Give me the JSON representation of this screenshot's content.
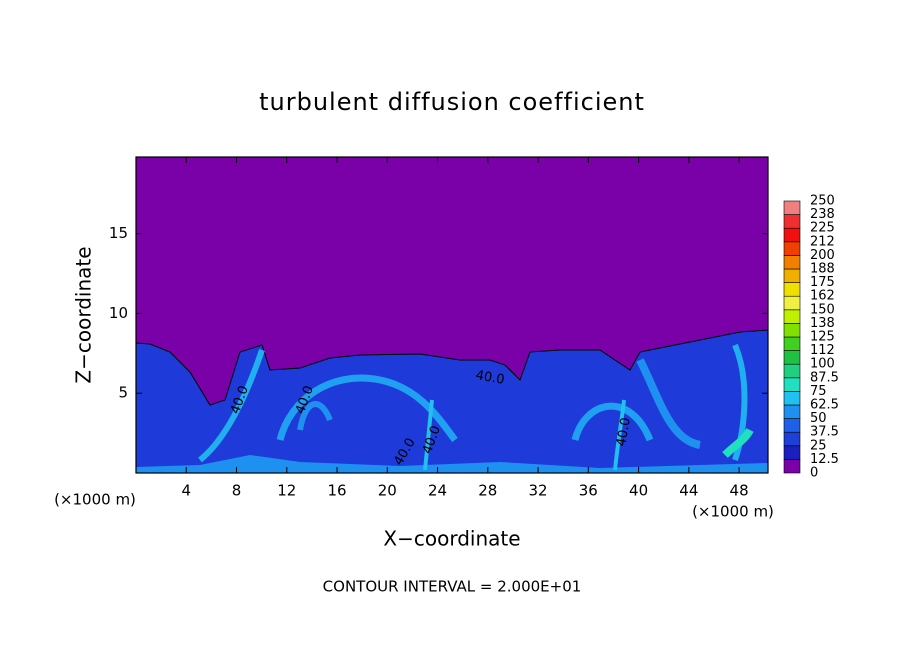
{
  "chart_data": {
    "type": "contour",
    "title": "turbulent diffusion coefficient",
    "x_label": "X−coordinate",
    "y_label": "Z−coordinate",
    "x_unit_label": "(×1000 m)",
    "x_unit_label_right": "(×1000 m)",
    "footer": "CONTOUR INTERVAL = 2.000E+01",
    "xlim": [
      0,
      50.3
    ],
    "ylim": [
      0,
      19.8
    ],
    "xticks": [
      4,
      8,
      12,
      16,
      20,
      24,
      28,
      32,
      36,
      40,
      44,
      48
    ],
    "yticks": [
      5,
      10,
      15
    ],
    "background_color": "#7a00a8",
    "annotations": [
      "40.0",
      "40.0",
      "40.0",
      "40.0",
      "40.0",
      "40.0"
    ],
    "colorbar": {
      "levels": [
        0,
        12.5,
        25,
        37.5,
        50,
        62.5,
        75,
        87.5,
        100,
        112,
        125,
        138,
        150,
        162,
        175,
        188,
        200,
        212,
        225,
        238,
        250
      ],
      "colors": [
        "#7a00a8",
        "#1a20c0",
        "#1e40d8",
        "#1e60e8",
        "#1e90f0",
        "#20c0f0",
        "#20e0c0",
        "#20d080",
        "#20c040",
        "#40d020",
        "#80e000",
        "#c0f000",
        "#f0f040",
        "#f0e000",
        "#f0b000",
        "#f08000",
        "#f04000",
        "#f01010",
        "#f03030",
        "#f08080"
      ]
    }
  }
}
